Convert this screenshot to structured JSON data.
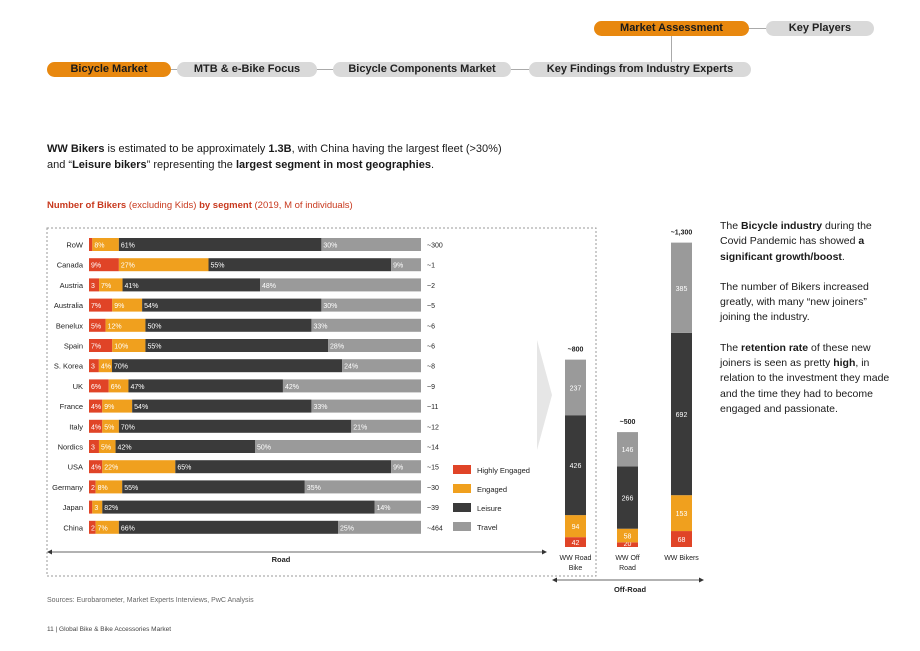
{
  "nav": {
    "top": [
      "Market Assessment",
      "Key Players"
    ],
    "tabs": [
      "Bicycle Market",
      "MTB & e-Bike Focus",
      "Bicycle Components Market",
      "Key Findings from Industry Experts"
    ]
  },
  "intro": {
    "p1": "WW Bikers",
    "p2": " is estimated to be approximately ",
    "p3": "1.3B",
    "p4": ", with China having the largest fleet (>30%)",
    "p5": "and “",
    "p6": "Leisure bikers",
    "p7": "” representing the ",
    "p8": "largest segment in most geographies",
    "p9": "."
  },
  "subtitle": {
    "a": "Number of Bikers",
    "b": " (excluding Kids) ",
    "c": "by segment",
    "d": " (2019, M of individuals)"
  },
  "colors": {
    "highly_engaged": "#e04427",
    "engaged": "#f0a01e",
    "leisure": "#3a3a3a",
    "travel": "#9a9a9a",
    "accent": "#e8880f"
  },
  "legend": [
    "Highly Engaged",
    "Engaged",
    "Leisure",
    "Travel"
  ],
  "chart_data": [
    {
      "type": "bar",
      "orientation": "horizontal-stacked-100",
      "categories": [
        "RoW",
        "Canada",
        "Austria",
        "Australia",
        "Benelux",
        "Spain",
        "S. Korea",
        "UK",
        "France",
        "Italy",
        "Nordics",
        "USA",
        "Germany",
        "Japan",
        "China"
      ],
      "series": [
        {
          "name": "Highly Engaged",
          "values": [
            1,
            9,
            3,
            7,
            5,
            7,
            3,
            6,
            4,
            4,
            3,
            4,
            2,
            1,
            2
          ],
          "labels": [
            "",
            "9%",
            "3",
            "7%",
            "5%",
            "7%",
            "3",
            "6%",
            "4%",
            "4%",
            "3",
            "4%",
            "2",
            "",
            "2"
          ]
        },
        {
          "name": "Engaged",
          "values": [
            8,
            27,
            7,
            9,
            12,
            10,
            4,
            6,
            9,
            5,
            5,
            22,
            8,
            3,
            7
          ],
          "labels": [
            "8%",
            "27%",
            "7%",
            "9%",
            "12%",
            "10%",
            "4%",
            "6%",
            "9%",
            "5%",
            "5%",
            "22%",
            "8%",
            "3",
            "7%"
          ]
        },
        {
          "name": "Leisure",
          "values": [
            61,
            55,
            41,
            54,
            50,
            55,
            70,
            47,
            54,
            70,
            42,
            65,
            55,
            82,
            66
          ],
          "labels": [
            "61%",
            "55%",
            "41%",
            "54%",
            "50%",
            "55%",
            "70%",
            "47%",
            "54%",
            "70%",
            "42%",
            "65%",
            "55%",
            "82%",
            "66%"
          ]
        },
        {
          "name": "Travel",
          "values": [
            30,
            9,
            48,
            30,
            33,
            28,
            24,
            42,
            33,
            21,
            50,
            9,
            35,
            14,
            25
          ],
          "labels": [
            "30%",
            "9%",
            "48%",
            "30%",
            "33%",
            "28%",
            "24%",
            "42%",
            "33%",
            "21%",
            "50%",
            "9%",
            "35%",
            "14%",
            "25%"
          ]
        }
      ],
      "totals": [
        "~300",
        "~1",
        "~2",
        "~5",
        "~6",
        "~6",
        "~8",
        "~9",
        "~11",
        "~12",
        "~14",
        "~15",
        "~30",
        "~39",
        "~464"
      ],
      "group_label": "Road",
      "legend_position": "right"
    },
    {
      "type": "bar",
      "orientation": "vertical-stacked",
      "categories": [
        "WW Road Bike",
        "WW Off Road",
        "WW Bikers"
      ],
      "series": [
        {
          "name": "Highly Engaged",
          "values": [
            42,
            20,
            68
          ]
        },
        {
          "name": "Engaged",
          "values": [
            94,
            58,
            153
          ]
        },
        {
          "name": "Leisure",
          "values": [
            426,
            266,
            692
          ]
        },
        {
          "name": "Travel",
          "values": [
            237,
            146,
            385
          ]
        }
      ],
      "totals": [
        "~800",
        "~500",
        "~1,300"
      ],
      "group_label": "Off-Road"
    }
  ],
  "side": {
    "b1a": "The ",
    "b1b": "Bicycle industry",
    "b1c": " during the Covid Pandemic has showed ",
    "b1d": "a significant growth/boost",
    "b1e": ".",
    "b2": "The number of Bikers increased greatly, with many “new joiners” joining the industry.",
    "b3a": "The ",
    "b3b": "retention rate",
    "b3c": " of these new joiners is seen as pretty ",
    "b3d": "high",
    "b3e": ", in relation to the investment they made and the time they had to become engaged and passionate."
  },
  "source": "Sources: Eurobarometer, Market Experts Interviews, PwC Analysis",
  "footer": "11 | Global Bike & Bike Accessories Market"
}
